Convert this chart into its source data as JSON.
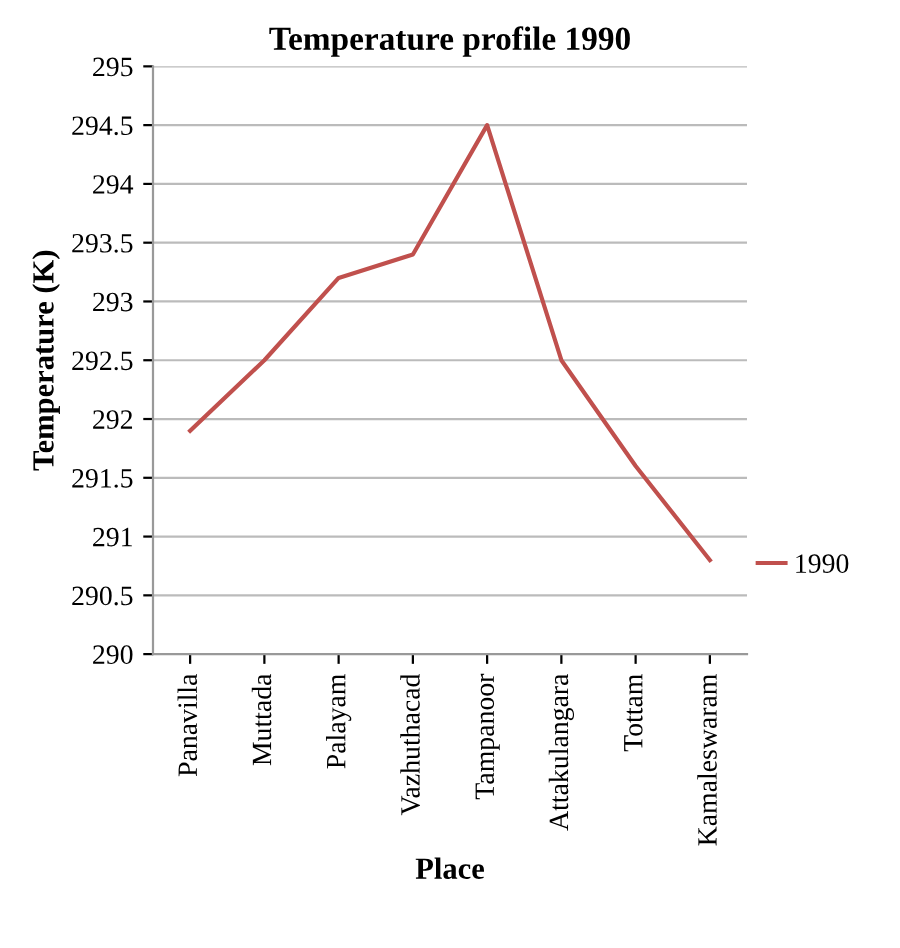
{
  "chart_data": {
    "type": "line",
    "title": "Temperature profile 1990",
    "xlabel": "Place",
    "ylabel": "Temperature (K)",
    "categories": [
      "Panavilla",
      "Muttada",
      "Palayam",
      "Vazhuthacad",
      "Tampanoor",
      "Attakulangara",
      "Tottam",
      "Kamaleswaram"
    ],
    "series": [
      {
        "name": "1990",
        "color": "#c0504d",
        "values": [
          291.9,
          292.5,
          293.2,
          293.4,
          294.5,
          292.5,
          291.6,
          290.8
        ]
      }
    ],
    "ylim": [
      290,
      295
    ],
    "yticks": [
      290,
      290.5,
      291,
      291.5,
      292,
      292.5,
      293,
      293.5,
      294,
      294.5,
      295
    ],
    "grid": "y",
    "legend": "right",
    "marker": "none",
    "line_style": "solid"
  }
}
